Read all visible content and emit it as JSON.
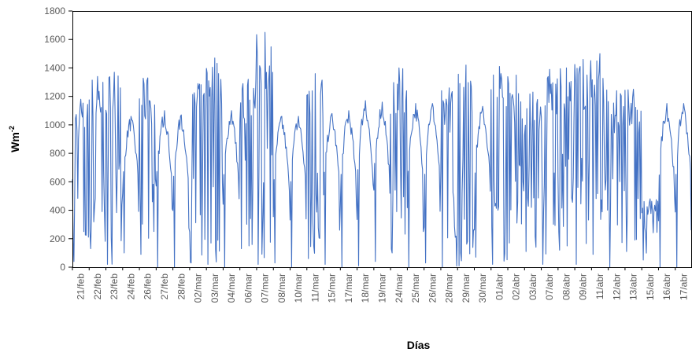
{
  "chart_data": {
    "type": "line",
    "title": "",
    "xlabel": "Días",
    "ylabel": "Wm",
    "ylabel_superscript": "-2",
    "ylim": [
      0,
      1800
    ],
    "yticks": [
      0,
      200,
      400,
      600,
      800,
      1000,
      1200,
      1400,
      1600,
      1800
    ],
    "grid": false,
    "legend": "none",
    "categories": [
      "21/feb",
      "22/feb",
      "23/feb",
      "24/feb",
      "26/feb",
      "27/feb",
      "28/feb",
      "02/mar",
      "03/mar",
      "04/mar",
      "06/mar",
      "07/mar",
      "08/mar",
      "10/mar",
      "11/mar",
      "15/mar",
      "17/mar",
      "18/mar",
      "19/mar",
      "24/mar",
      "25/mar",
      "26/mar",
      "28/mar",
      "29/mar",
      "30/mar",
      "01/abr",
      "02/abr",
      "03/abr",
      "07/abr",
      "08/abr",
      "09/abr",
      "11/abr",
      "12/abr",
      "13/abr",
      "15/abr",
      "16/abr",
      "17/abr"
    ],
    "series": [
      {
        "color": "#4472C4",
        "daily_peaks": [
          1180,
          1340,
          1370,
          1060,
          1330,
          1100,
          1070,
          1290,
          1470,
          1100,
          1320,
          1650,
          1060,
          1060,
          1360,
          1080,
          1100,
          1170,
          1160,
          1400,
          1150,
          1150,
          1260,
          1420,
          1130,
          1410,
          1350,
          1230,
          1390,
          1400,
          1460,
          1500,
          1240,
          1250,
          480,
          1150,
          1150
        ],
        "daily_minimums": [
          40,
          130,
          20,
          100,
          90,
          0,
          0,
          30,
          20,
          0,
          130,
          20,
          30,
          0,
          60,
          20,
          0,
          10,
          40,
          100,
          0,
          30,
          0,
          10,
          70,
          20,
          170,
          110,
          20,
          120,
          20,
          90,
          0,
          110,
          50,
          0,
          0
        ]
      }
    ]
  }
}
